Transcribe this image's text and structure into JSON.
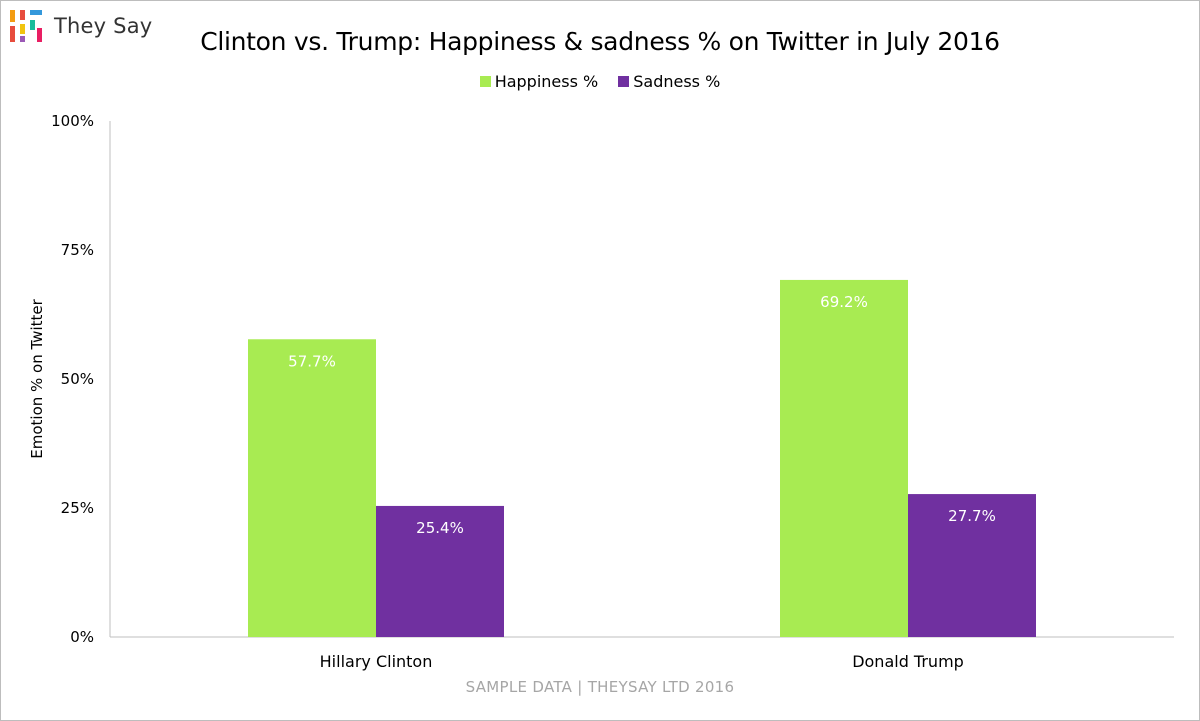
{
  "logo": {
    "name": "They Say"
  },
  "legend_items": [
    {
      "label": "Happiness %",
      "color": "#a8eb52"
    },
    {
      "label": "Sadness %",
      "color": "#7030a0"
    }
  ],
  "footer": "SAMPLE DATA | THEYSAY LTD 2016",
  "chart_data": {
    "type": "bar",
    "title": "Clinton vs. Trump: Happiness & sadness % on Twitter in July 2016",
    "ylabel": "Emotion % on Twitter",
    "xlabel": "",
    "categories": [
      "Hillary Clinton",
      "Donald Trump"
    ],
    "series": [
      {
        "name": "Happiness %",
        "color": "#a8eb52",
        "values": [
          57.7,
          69.2
        ],
        "labels": [
          "57.7%",
          "69.2%"
        ]
      },
      {
        "name": "Sadness %",
        "color": "#7030a0",
        "values": [
          25.4,
          27.7
        ],
        "labels": [
          "25.4%",
          "27.7%"
        ]
      }
    ],
    "ylim": [
      0,
      100
    ],
    "yticks": [
      0,
      25,
      50,
      75,
      100
    ],
    "ytick_labels": [
      "0%",
      "25%",
      "50%",
      "75%",
      "100%"
    ],
    "grid": false,
    "legend_position": "top"
  }
}
